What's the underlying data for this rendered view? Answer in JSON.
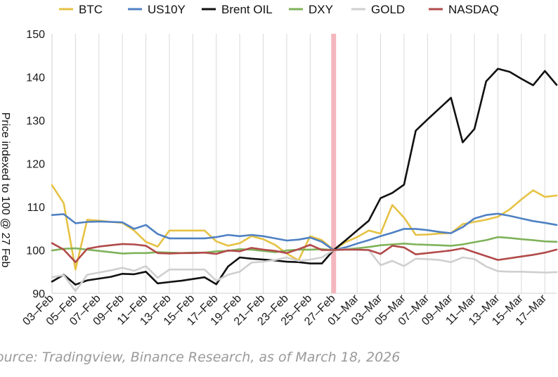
{
  "chart_data": {
    "type": "line",
    "ylabel": "Price indexed to 100 @ 27 Feb",
    "ylim": [
      90,
      150
    ],
    "y_ticks": [
      "90",
      "100",
      "110",
      "120",
      "130",
      "140",
      "150"
    ],
    "grid": "vertical",
    "legend": "top",
    "marker": {
      "date": "27-Feb",
      "color": "#f4b6bd"
    },
    "x_labels": [
      "03-Feb",
      "05-Feb",
      "07-Feb",
      "09-Feb",
      "11-Feb",
      "13-Feb",
      "15-Feb",
      "17-Feb",
      "19-Feb",
      "21-Feb",
      "23-Feb",
      "25-Feb",
      "27-Feb",
      "01-Mar",
      "03-Mar",
      "05-Mar",
      "07-Mar",
      "09-Mar",
      "11-Mar",
      "13-Mar",
      "15-Mar",
      "17-Mar"
    ],
    "x": [
      "03-Feb",
      "04-Feb",
      "05-Feb",
      "06-Feb",
      "07-Feb",
      "08-Feb",
      "09-Feb",
      "10-Feb",
      "11-Feb",
      "12-Feb",
      "13-Feb",
      "14-Feb",
      "15-Feb",
      "16-Feb",
      "17-Feb",
      "18-Feb",
      "19-Feb",
      "20-Feb",
      "21-Feb",
      "22-Feb",
      "23-Feb",
      "24-Feb",
      "25-Feb",
      "26-Feb",
      "27-Feb",
      "28-Feb",
      "01-Mar",
      "02-Mar",
      "03-Mar",
      "04-Mar",
      "05-Mar",
      "06-Mar",
      "07-Mar",
      "08-Mar",
      "09-Mar",
      "10-Mar",
      "11-Mar",
      "12-Mar",
      "13-Mar",
      "14-Mar",
      "15-Mar",
      "16-Mar",
      "17-Mar",
      "18-Mar"
    ],
    "series": [
      {
        "name": "BTC",
        "color": "#e6c244",
        "values": [
          115,
          110.8,
          95.5,
          107,
          106.8,
          106.5,
          106.3,
          104.5,
          101.9,
          100.8,
          104.5,
          104.5,
          104.5,
          104.5,
          102,
          101,
          101.6,
          103.2,
          102.5,
          101.2,
          99.2,
          97.6,
          103.2,
          102.3,
          100,
          101.8,
          103,
          104.5,
          103.8,
          110.4,
          107.5,
          103.5,
          103.6,
          103.8,
          103.9,
          106,
          106.5,
          107,
          107.7,
          109.4,
          111.7,
          113.8,
          112.3,
          112.6
        ]
      },
      {
        "name": "US10Y",
        "color": "#4f81c4",
        "values": [
          108.1,
          108.3,
          106.2,
          106.5,
          106.6,
          106.5,
          106.4,
          104.9,
          105.8,
          103.7,
          102.7,
          102.7,
          102.7,
          102.7,
          103,
          103.5,
          103.2,
          103.5,
          103.2,
          102.7,
          102.2,
          102.4,
          102.9,
          101.9,
          100,
          100.6,
          101.5,
          102.3,
          103.2,
          104,
          104.9,
          104.9,
          104.6,
          104.2,
          103.9,
          105.3,
          107.3,
          108.1,
          108.4,
          107.9,
          107.3,
          106.7,
          106.3,
          105.8
        ]
      },
      {
        "name": "Brent OIL",
        "color": "#111111",
        "values": [
          92.7,
          94.3,
          92,
          93,
          93.4,
          93.8,
          94.5,
          94.4,
          95,
          92.3,
          92.6,
          92.9,
          93.3,
          93.7,
          92.1,
          96.2,
          98.3,
          98,
          97.8,
          97.6,
          97.3,
          97.2,
          96.9,
          96.9,
          100,
          102.2,
          104.5,
          106.8,
          112,
          113.2,
          115.1,
          127.6,
          130.2,
          132.7,
          135.2,
          124.9,
          128,
          139,
          141.9,
          141.2,
          139.6,
          138.1,
          141.4,
          138.2
        ]
      },
      {
        "name": "DXY",
        "color": "#7fb25a",
        "values": [
          99.9,
          100.3,
          100.4,
          100.1,
          99.8,
          99.5,
          99.2,
          99.3,
          99.3,
          99.5,
          99.4,
          99.3,
          99.4,
          99.4,
          99.7,
          99.8,
          100.2,
          100.1,
          99.8,
          99.5,
          99.9,
          100.1,
          100.1,
          100.2,
          100,
          100.2,
          100.4,
          100.7,
          101.1,
          101.3,
          101.5,
          101.3,
          101.2,
          101.1,
          101,
          101.3,
          101.8,
          102.3,
          103,
          102.8,
          102.5,
          102.3,
          102,
          101.9
        ]
      },
      {
        "name": "GOLD",
        "color": "#cfcfcf",
        "values": [
          93.7,
          94.2,
          90.5,
          94.3,
          94.8,
          95.3,
          95.9,
          95.2,
          96.3,
          93.6,
          95.5,
          95.5,
          95.5,
          95.5,
          92.9,
          94.3,
          95,
          97.1,
          97.3,
          97.7,
          98.3,
          97.5,
          97.8,
          98.3,
          100,
          100.2,
          100.1,
          100,
          96.5,
          97.5,
          96.3,
          98,
          97.9,
          97.7,
          97.2,
          98.3,
          97.9,
          96.2,
          95.1,
          95,
          95,
          94.9,
          94.8,
          94.9
        ]
      },
      {
        "name": "NASDAQ",
        "color": "#b24a4a",
        "values": [
          101.6,
          100.1,
          97.2,
          100.3,
          100.8,
          101.1,
          101.4,
          101.3,
          101,
          99.3,
          99.2,
          99.3,
          99.3,
          99.4,
          99.1,
          99.9,
          99.7,
          100.5,
          100.1,
          99.8,
          99.3,
          100.2,
          101.2,
          100,
          100,
          100.1,
          100.1,
          100,
          99.1,
          101,
          100.6,
          99,
          99.3,
          99.6,
          99.9,
          100.4,
          99.5,
          98.6,
          97.7,
          98.1,
          98.5,
          98.9,
          99.4,
          100.1
        ]
      }
    ]
  },
  "source_text": "ource: Tradingview, Binance Research, as of March 18, 2026"
}
